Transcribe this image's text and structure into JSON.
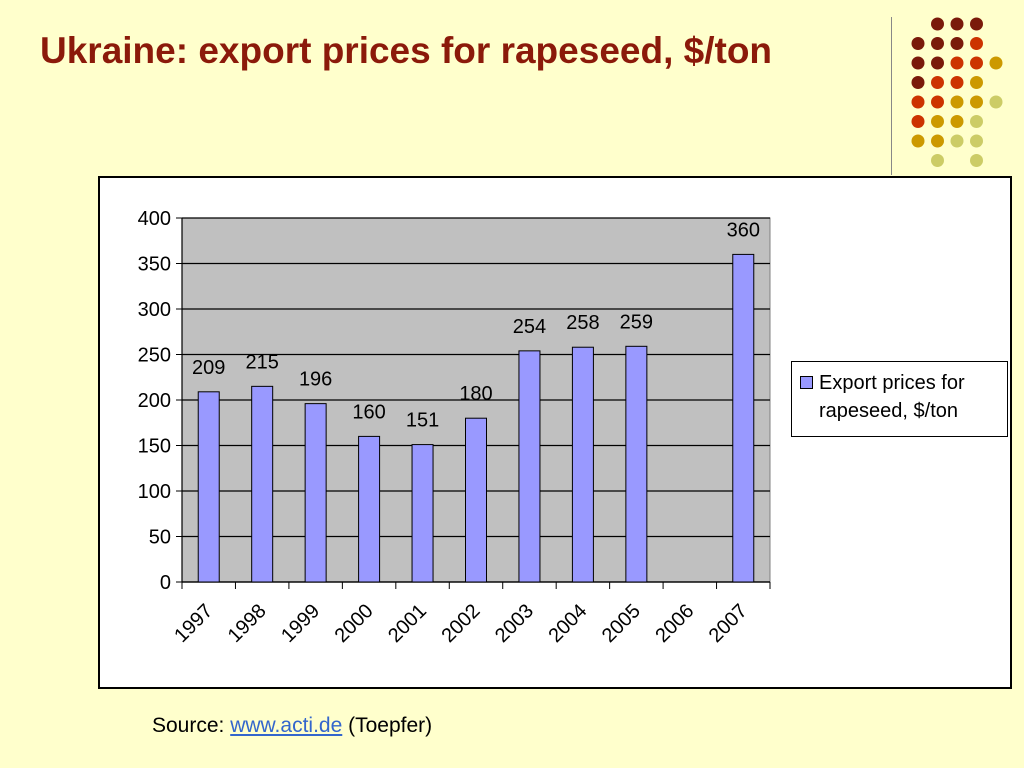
{
  "title": "Ukraine: export prices for rapeseed, $/ton",
  "colors": {
    "title": "#8b1a0a",
    "background": "#ffffcc",
    "plot_area": "#c0c0c0",
    "bar_fill": "#9999ff",
    "dots": [
      "#7a1a0a",
      "#cc3300",
      "#cc9900",
      "#cccc66"
    ]
  },
  "chart_data": {
    "type": "bar",
    "categories": [
      "1997",
      "1998",
      "1999",
      "2000",
      "2001",
      "2002",
      "2003",
      "2004",
      "2005",
      "2006",
      "2007"
    ],
    "series": [
      {
        "name": "Export prices for rapeseed, $/ton",
        "values": [
          209,
          215,
          196,
          160,
          151,
          180,
          254,
          258,
          259,
          null,
          360
        ]
      }
    ],
    "data_labels": [
      "209",
      "215",
      "196",
      "160",
      "151",
      "180",
      "254",
      "258",
      "259",
      "",
      "360"
    ],
    "y_ticks": [
      "0",
      "50",
      "100",
      "150",
      "200",
      "250",
      "300",
      "350",
      "400"
    ],
    "ylim": [
      0,
      400
    ],
    "grid": true,
    "legend_position": "right",
    "xlabel": "",
    "ylabel": ""
  },
  "legend": {
    "label": "Export prices for rapeseed, $/ton"
  },
  "source": {
    "prefix": "Source:",
    "link_text": "www.acti.de",
    "suffix": "(Toepfer)"
  }
}
